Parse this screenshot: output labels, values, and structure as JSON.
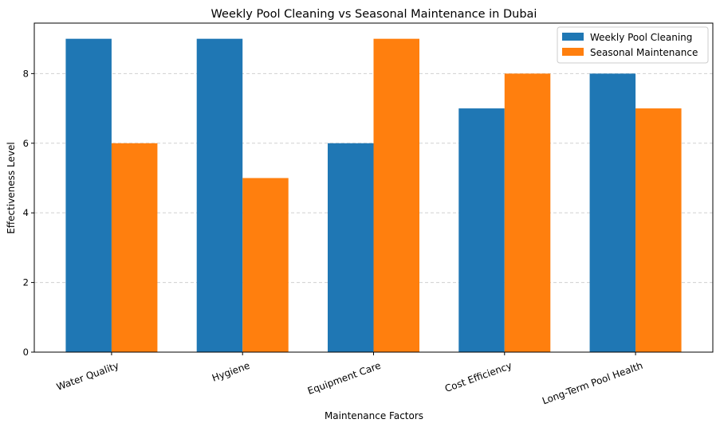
{
  "chart_data": {
    "type": "bar",
    "title": "Weekly Pool Cleaning vs Seasonal Maintenance in Dubai",
    "xlabel": "Maintenance Factors",
    "ylabel": "Effectiveness Level",
    "categories": [
      "Water Quality",
      "Hygiene",
      "Equipment Care",
      "Cost Efficiency",
      "Long-Term Pool Health"
    ],
    "series": [
      {
        "name": "Weekly Pool Cleaning",
        "values": [
          9,
          9,
          6,
          7,
          8
        ],
        "color": "#1f77b4"
      },
      {
        "name": "Seasonal Maintenance",
        "values": [
          6,
          5,
          9,
          8,
          7
        ],
        "color": "#ff7f0e"
      }
    ],
    "ylim": [
      0,
      9.45
    ],
    "yticks": [
      0,
      2,
      4,
      6,
      8
    ],
    "grid": "y dashed",
    "legend": "top-right"
  }
}
